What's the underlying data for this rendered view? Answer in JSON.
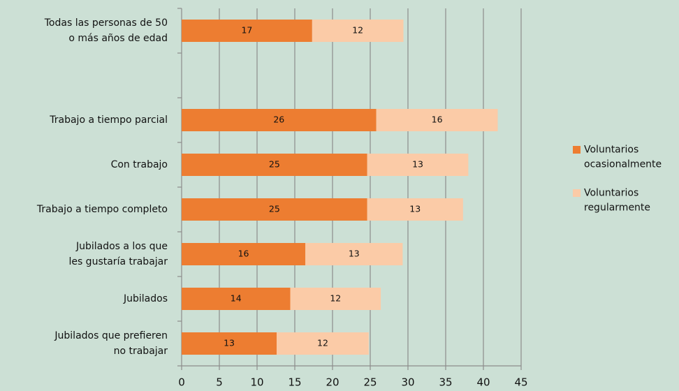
{
  "chart_data": {
    "type": "stacked-barh",
    "categories": [
      "Todas las personas de 50\no más años de edad",
      null,
      "Trabajo a tiempo parcial",
      "Con trabajo",
      "Trabajo a tiempo completo",
      "Jubilados a los que\nles gustaría trabajar",
      "Jubilados",
      "Jubilados que prefieren\nno trabajar"
    ],
    "series": [
      {
        "name": "Voluntarios ocasionalmente",
        "color": "#ed7d31",
        "values": [
          17.3,
          null,
          25.8,
          24.6,
          24.6,
          16.4,
          14.4,
          12.6
        ],
        "value_labels": [
          "17",
          null,
          "26",
          "25",
          "25",
          "16",
          "14",
          "13"
        ]
      },
      {
        "name": "Voluntarios regularmente",
        "color": "#fbcba7",
        "values": [
          12.1,
          null,
          16.1,
          13.4,
          12.7,
          12.9,
          12.0,
          12.2
        ],
        "value_labels": [
          "12",
          null,
          "16",
          "13",
          "13",
          "13",
          "12",
          "12"
        ]
      }
    ],
    "xlim": [
      0,
      45
    ],
    "xticks": [
      0,
      5,
      10,
      15,
      20,
      25,
      30,
      35,
      40,
      45
    ],
    "grid": true,
    "legend": "right"
  }
}
